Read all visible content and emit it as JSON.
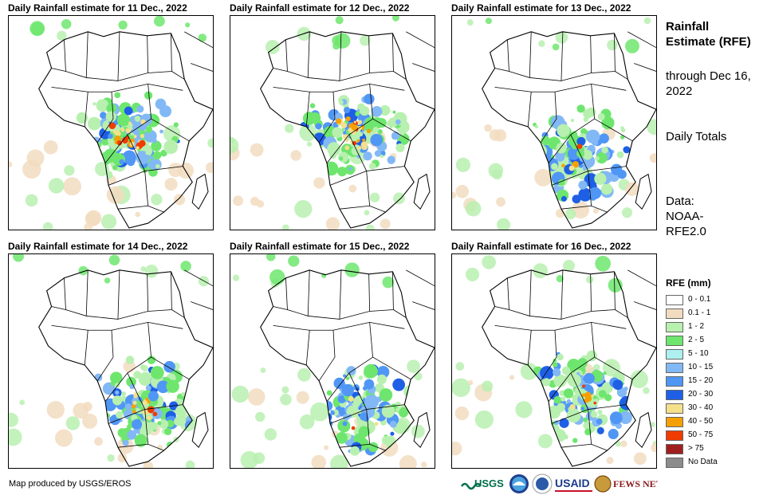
{
  "panels": [
    {
      "title": "Daily Rainfall estimate for 11 Dec., 2022"
    },
    {
      "title": "Daily Rainfall estimate for 12 Dec., 2022"
    },
    {
      "title": "Daily Rainfall estimate for 13 Dec., 2022"
    },
    {
      "title": "Daily Rainfall estimate for 14 Dec., 2022"
    },
    {
      "title": "Daily Rainfall estimate for 15 Dec., 2022"
    },
    {
      "title": "Daily Rainfall estimate for 16 Dec., 2022"
    }
  ],
  "sidebar": {
    "title": "Rainfall Estimate (RFE)",
    "through_label": "through Dec 16, 2022",
    "totals_label": "Daily Totals",
    "data_label": "Data: NOAA-RFE2.0"
  },
  "legend": {
    "title": "RFE (mm)",
    "items": [
      {
        "label": "0 - 0.1",
        "color": "#ffffff"
      },
      {
        "label": "0.1 - 1",
        "color": "#f2dcc0"
      },
      {
        "label": "1 - 2",
        "color": "#b8f0b0"
      },
      {
        "label": "2 - 5",
        "color": "#6ee66e"
      },
      {
        "label": "5 - 10",
        "color": "#aef0f0"
      },
      {
        "label": "10 - 15",
        "color": "#82b8f5"
      },
      {
        "label": "15 - 20",
        "color": "#5096f5"
      },
      {
        "label": "20 - 30",
        "color": "#1e5fe6"
      },
      {
        "label": "30 - 40",
        "color": "#f5e08c"
      },
      {
        "label": "40 - 50",
        "color": "#f5a000"
      },
      {
        "label": "50 - 75",
        "color": "#f03c00"
      },
      {
        "label": "> 75",
        "color": "#a01e1e"
      },
      {
        "label": "No Data",
        "color": "#8c8c8c"
      }
    ]
  },
  "footer": {
    "credit": "Map produced by USGS/EROS",
    "logos": {
      "usgs": "USGS",
      "usaid": "USAID",
      "fewsnet": "FEWS NET"
    }
  }
}
